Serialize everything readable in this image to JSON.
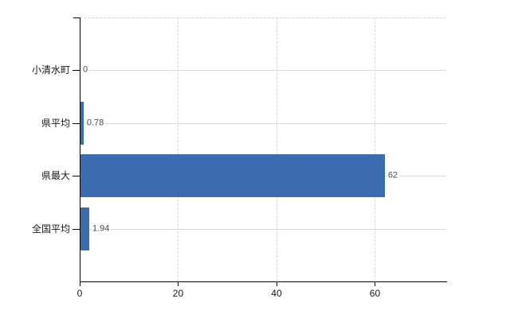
{
  "chart_data": {
    "type": "bar",
    "orientation": "horizontal",
    "title": "",
    "categories": [
      "小清水町",
      "県平均",
      "県最大",
      "全国平均"
    ],
    "values": [
      0,
      0.78,
      62,
      1.94
    ],
    "value_labels": [
      "0",
      "0.78",
      "62",
      "1.94"
    ],
    "x_tick_labels": [
      "0",
      "20",
      "40",
      "60"
    ],
    "x_tick_values": [
      0,
      20,
      40,
      60
    ],
    "xlim": [
      0,
      74.5
    ],
    "grid": true,
    "legend_position": "none",
    "colors": {
      "bar": "#3b6caf",
      "h_gridline": "#d9d9d9",
      "v_gridline": "#d6d6d6",
      "axis": "#000000",
      "value_label": "#4d4d4d",
      "category_label": "#1a1a1a",
      "tick_label": "#1a1a1a"
    }
  }
}
